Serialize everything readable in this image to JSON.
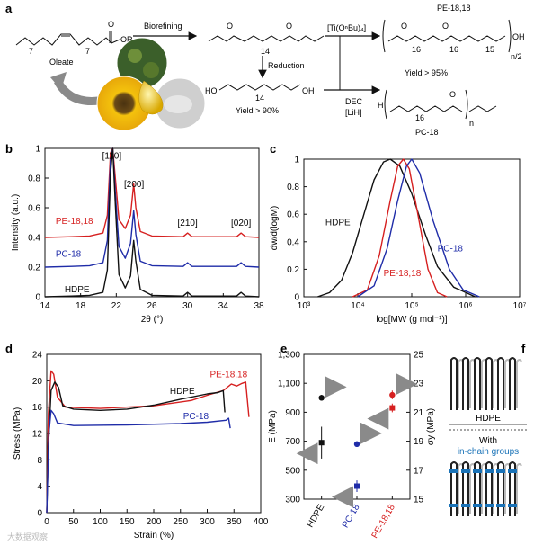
{
  "colors": {
    "hdpe": "#111111",
    "pe1818": "#d62020",
    "pc18": "#1f2ca8",
    "gray_arrow": "#8a8a8a",
    "chain": "#222222",
    "chain_group": "#1a73b8",
    "in_chain_label": "#1a73b8"
  },
  "panel_letters": {
    "a": "a",
    "b": "b",
    "c": "c",
    "d": "d",
    "e": "e",
    "f": "f"
  },
  "scheme": {
    "oleate": "Oleate",
    "or_group": "OR",
    "sub7a": "7",
    "sub7b": "7",
    "biorefining": "Biorefining",
    "diester_sub": "14",
    "catalyst": "[Ti(OⁿBu)₄]",
    "pe1818_title": "PE-18,18",
    "pe_sub16a": "16",
    "pe_sub16b": "16",
    "pe_sub15": "15",
    "pe_n": "n/2",
    "pe_oh": "OH",
    "reduction": "Reduction",
    "diol_ho": "HO",
    "diol_oh": "OH",
    "diol_sub": "14",
    "yield90": "Yield > 90%",
    "yield95": "Yield > 95%",
    "dec": "DEC",
    "lih": "[LiH]",
    "pc_h": "H",
    "pc_sub16": "16",
    "pc_n": "n",
    "pc18_title": "PC-18"
  },
  "watermark": "大数据观察",
  "chart_data": [
    {
      "id": "b",
      "type": "line",
      "xlabel": "2θ (°)",
      "ylabel": "Intensity (a.u.)",
      "xlim": [
        14,
        38
      ],
      "ylim": [
        0,
        1
      ],
      "xticks": [
        14,
        18,
        22,
        26,
        30,
        34,
        38
      ],
      "yticks": [
        0,
        0.2,
        0.4,
        0.6,
        0.8,
        1
      ],
      "xtick_labels": [
        "14",
        "18",
        "22",
        "26",
        "30",
        "34",
        "38"
      ],
      "ytick_labels": [
        "0",
        "0.2",
        "0.4",
        "0.6",
        "0.8",
        "1"
      ],
      "peak_labels": [
        {
          "text": "[110]",
          "x": 21.5,
          "y": 0.93
        },
        {
          "text": "[200]",
          "x": 24.0,
          "y": 0.74
        },
        {
          "text": "[210]",
          "x": 30.0,
          "y": 0.48
        },
        {
          "text": "[020]",
          "x": 36.0,
          "y": 0.48
        }
      ],
      "series": [
        {
          "name": "PE-18,18",
          "color_key": "pe1818",
          "label_x": 15.2,
          "label_y": 0.49,
          "points": [
            [
              14,
              0.4
            ],
            [
              17,
              0.405
            ],
            [
              19,
              0.41
            ],
            [
              20.5,
              0.43
            ],
            [
              21.0,
              0.55
            ],
            [
              21.35,
              0.97
            ],
            [
              21.6,
              1.0
            ],
            [
              21.9,
              0.8
            ],
            [
              22.3,
              0.52
            ],
            [
              23.0,
              0.46
            ],
            [
              23.6,
              0.55
            ],
            [
              23.95,
              0.76
            ],
            [
              24.2,
              0.6
            ],
            [
              24.7,
              0.44
            ],
            [
              26,
              0.41
            ],
            [
              29.5,
              0.405
            ],
            [
              30.0,
              0.43
            ],
            [
              30.5,
              0.405
            ],
            [
              35.5,
              0.405
            ],
            [
              36.0,
              0.43
            ],
            [
              36.5,
              0.405
            ],
            [
              38,
              0.4
            ]
          ]
        },
        {
          "name": "PC-18",
          "color_key": "pc18",
          "label_x": 15.2,
          "label_y": 0.27,
          "points": [
            [
              14,
              0.2
            ],
            [
              17,
              0.205
            ],
            [
              19,
              0.21
            ],
            [
              20.5,
              0.23
            ],
            [
              21.0,
              0.38
            ],
            [
              21.35,
              0.92
            ],
            [
              21.6,
              1.0
            ],
            [
              21.9,
              0.7
            ],
            [
              22.3,
              0.34
            ],
            [
              23.0,
              0.26
            ],
            [
              23.6,
              0.36
            ],
            [
              23.95,
              0.58
            ],
            [
              24.2,
              0.42
            ],
            [
              24.7,
              0.24
            ],
            [
              26,
              0.21
            ],
            [
              29.5,
              0.205
            ],
            [
              30.0,
              0.23
            ],
            [
              30.5,
              0.205
            ],
            [
              35.5,
              0.205
            ],
            [
              36.0,
              0.23
            ],
            [
              36.5,
              0.205
            ],
            [
              38,
              0.2
            ]
          ]
        },
        {
          "name": "HDPE",
          "color_key": "hdpe",
          "label_x": 16.2,
          "label_y": 0.03,
          "points": [
            [
              14,
              0.0
            ],
            [
              17,
              0.005
            ],
            [
              19,
              0.01
            ],
            [
              20.5,
              0.03
            ],
            [
              21.0,
              0.18
            ],
            [
              21.35,
              0.83
            ],
            [
              21.6,
              1.0
            ],
            [
              21.9,
              0.62
            ],
            [
              22.3,
              0.15
            ],
            [
              23.0,
              0.06
            ],
            [
              23.6,
              0.14
            ],
            [
              23.95,
              0.38
            ],
            [
              24.2,
              0.24
            ],
            [
              24.7,
              0.05
            ],
            [
              26,
              0.01
            ],
            [
              29.5,
              0.005
            ],
            [
              30.0,
              0.03
            ],
            [
              30.5,
              0.005
            ],
            [
              35.5,
              0.005
            ],
            [
              36.0,
              0.03
            ],
            [
              36.5,
              0.005
            ],
            [
              38,
              0.0
            ]
          ]
        }
      ]
    },
    {
      "id": "c",
      "type": "line",
      "xlabel": "log[MW (g mol⁻¹)]",
      "ylabel": "dw/d(logM)",
      "xscale": "log10",
      "xlim": [
        1000,
        10000000
      ],
      "ylim": [
        0,
        1
      ],
      "xticks": [
        1000,
        10000,
        100000,
        1000000,
        10000000
      ],
      "yticks": [
        0,
        0.2,
        0.4,
        0.6,
        0.8,
        1
      ],
      "xtick_labels": [
        "10³",
        "10⁴",
        "10⁵",
        "10⁶",
        "10⁷"
      ],
      "ytick_labels": [
        "0",
        "0.2",
        "0.4",
        "0.6",
        "0.8",
        "1"
      ],
      "series": [
        {
          "name": "HDPE",
          "color_key": "hdpe",
          "label_x": 2500,
          "label_y": 0.52,
          "points": [
            [
              1800,
              0.0
            ],
            [
              3000,
              0.03
            ],
            [
              5000,
              0.12
            ],
            [
              8000,
              0.32
            ],
            [
              13000,
              0.6
            ],
            [
              20000,
              0.85
            ],
            [
              30000,
              0.98
            ],
            [
              40000,
              1.0
            ],
            [
              60000,
              0.95
            ],
            [
              100000,
              0.75
            ],
            [
              180000,
              0.45
            ],
            [
              300000,
              0.22
            ],
            [
              600000,
              0.07
            ],
            [
              1500000,
              0.0
            ]
          ]
        },
        {
          "name": "PE-18,18",
          "color_key": "pe1818",
          "label_x": 30000,
          "label_y": 0.15,
          "points": [
            [
              8000,
              0.0
            ],
            [
              15000,
              0.05
            ],
            [
              25000,
              0.3
            ],
            [
              40000,
              0.7
            ],
            [
              55000,
              0.95
            ],
            [
              70000,
              1.0
            ],
            [
              90000,
              0.93
            ],
            [
              130000,
              0.6
            ],
            [
              200000,
              0.2
            ],
            [
              300000,
              0.03
            ],
            [
              450000,
              0.0
            ]
          ]
        },
        {
          "name": "PC-18",
          "color_key": "pc18",
          "label_x": 300000,
          "label_y": 0.33,
          "points": [
            [
              10000,
              0.0
            ],
            [
              20000,
              0.08
            ],
            [
              35000,
              0.35
            ],
            [
              55000,
              0.7
            ],
            [
              80000,
              0.95
            ],
            [
              100000,
              1.0
            ],
            [
              140000,
              0.9
            ],
            [
              250000,
              0.55
            ],
            [
              500000,
              0.2
            ],
            [
              900000,
              0.05
            ],
            [
              1800000,
              0.0
            ]
          ]
        }
      ]
    },
    {
      "id": "d",
      "type": "line",
      "xlabel": "Strain (%)",
      "ylabel": "Stress (MPa)",
      "xlim": [
        0,
        400
      ],
      "ylim": [
        0,
        24
      ],
      "xticks": [
        0,
        50,
        100,
        150,
        200,
        250,
        300,
        350,
        400
      ],
      "yticks": [
        0,
        4,
        8,
        12,
        16,
        20,
        24
      ],
      "xtick_labels": [
        "0",
        "50",
        "100",
        "150",
        "200",
        "250",
        "300",
        "350",
        "400"
      ],
      "ytick_labels": [
        "0",
        "4",
        "8",
        "12",
        "16",
        "20",
        "24"
      ],
      "series": [
        {
          "name": "PE-18,18",
          "color_key": "pe1818",
          "label_x": 305,
          "label_y": 20.5,
          "points": [
            [
              0,
              0
            ],
            [
              3,
              15
            ],
            [
              8,
              21.5
            ],
            [
              13,
              21.0
            ],
            [
              20,
              17.5
            ],
            [
              35,
              16.0
            ],
            [
              100,
              15.8
            ],
            [
              200,
              16.2
            ],
            [
              270,
              17.0
            ],
            [
              300,
              17.8
            ],
            [
              330,
              18.5
            ],
            [
              345,
              19.5
            ],
            [
              355,
              19.2
            ],
            [
              365,
              19.6
            ],
            [
              372,
              19.8
            ],
            [
              378,
              14.5
            ]
          ]
        },
        {
          "name": "HDPE",
          "color_key": "hdpe",
          "label_x": 230,
          "label_y": 18.0,
          "points": [
            [
              0,
              0
            ],
            [
              3,
              10
            ],
            [
              8,
              18.5
            ],
            [
              15,
              19.8
            ],
            [
              22,
              19.0
            ],
            [
              30,
              16.2
            ],
            [
              50,
              15.7
            ],
            [
              100,
              15.5
            ],
            [
              150,
              15.7
            ],
            [
              200,
              16.3
            ],
            [
              250,
              17.2
            ],
            [
              300,
              18.0
            ],
            [
              320,
              18.2
            ],
            [
              330,
              18.5
            ],
            [
              333,
              15.2
            ]
          ]
        },
        {
          "name": "PC-18",
          "color_key": "pc18",
          "label_x": 255,
          "label_y": 14.2,
          "points": [
            [
              0,
              0
            ],
            [
              4,
              12
            ],
            [
              8,
              15.5
            ],
            [
              13,
              15.0
            ],
            [
              20,
              13.6
            ],
            [
              50,
              13.2
            ],
            [
              150,
              13.3
            ],
            [
              250,
              13.5
            ],
            [
              300,
              13.7
            ],
            [
              335,
              14.0
            ],
            [
              340,
              14.3
            ],
            [
              343,
              12.8
            ]
          ]
        }
      ]
    },
    {
      "id": "e",
      "type": "scatter",
      "ylabel_left": "E (MPa)",
      "ylabel_right": "σy (MPa)",
      "categories": [
        "HDPE",
        "PC-18",
        "PE-18,18"
      ],
      "ylim_left": [
        300,
        1300
      ],
      "ylim_right": [
        15,
        25
      ],
      "yticks_left": [
        300,
        500,
        700,
        900,
        1100,
        1300
      ],
      "ytick_labels_left": [
        "300",
        "500",
        "700",
        "900",
        "1,100",
        "1,300"
      ],
      "yticks_right": [
        15,
        17,
        19,
        21,
        23,
        25
      ],
      "ytick_labels_right": [
        "15",
        "17",
        "19",
        "21",
        "23",
        "25"
      ],
      "series": [
        {
          "name": "E",
          "axis": "left",
          "marker": "square",
          "points": [
            {
              "category": "HDPE",
              "value": 690,
              "err": 110,
              "color_key": "hdpe"
            },
            {
              "category": "PC-18",
              "value": 390,
              "err": 40,
              "color_key": "pc18"
            },
            {
              "category": "PE-18,18",
              "value": 930,
              "err": 30,
              "color_key": "pe1818"
            }
          ]
        },
        {
          "name": "σy",
          "axis": "right",
          "marker": "circle",
          "points": [
            {
              "category": "HDPE",
              "value": 22.0,
              "err": 0.2,
              "color_key": "hdpe"
            },
            {
              "category": "PC-18",
              "value": 18.8,
              "err": 0.2,
              "color_key": "pc18"
            },
            {
              "category": "PE-18,18",
              "value": 22.2,
              "err": 0.3,
              "color_key": "pe1818"
            }
          ]
        }
      ]
    }
  ],
  "panel_f": {
    "hdpe_label": "HDPE",
    "with_label": "With",
    "in_chain_label": "in-chain groups"
  }
}
